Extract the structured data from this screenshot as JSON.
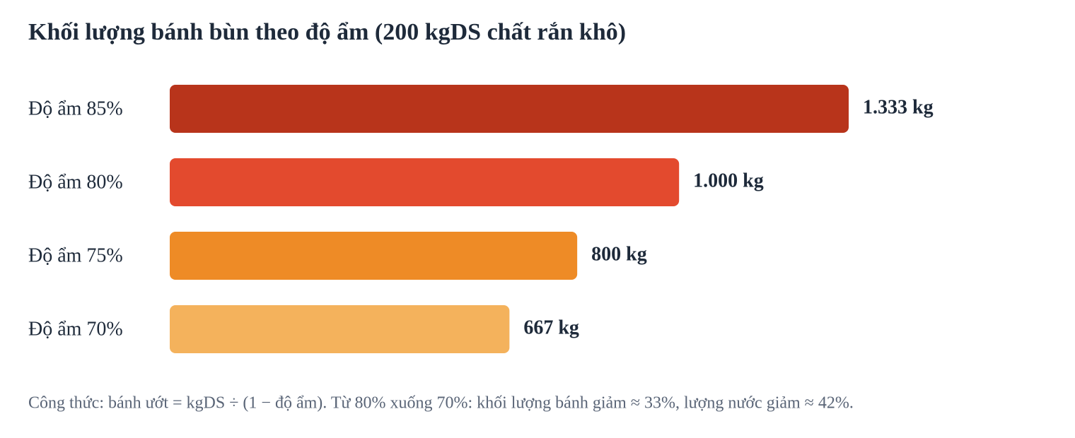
{
  "chart_data": {
    "type": "bar",
    "orientation": "horizontal",
    "title": "Khối lượng bánh bùn theo độ ẩm (200 kgDS chất rắn khô)",
    "categories": [
      "Độ ẩm 85%",
      "Độ ẩm 80%",
      "Độ ẩm 75%",
      "Độ ẩm 70%"
    ],
    "values": [
      1333,
      1000,
      800,
      667
    ],
    "value_labels": [
      "1.333 kg",
      "1.000 kg",
      "800 kg",
      "667 kg"
    ],
    "colors": [
      "#b8341b",
      "#e34a2e",
      "#ee8b26",
      "#f4b25c"
    ],
    "note": "Công thức: bánh ướt = kgDS ÷ (1 − độ ẩm). Từ 80% xuống 70%: khối lượng bánh giảm ≈ 33%, lượng nước giảm ≈ 42%."
  }
}
